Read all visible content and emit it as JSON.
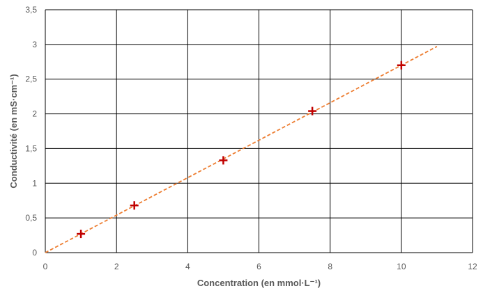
{
  "chart_data": {
    "type": "scatter",
    "xlabel": "Concentration (en mmol·L⁻¹)",
    "ylabel": "Conductivité (en mS·cm⁻¹)",
    "xlim": [
      0,
      12
    ],
    "ylim": [
      0,
      3.5
    ],
    "x_ticks": [
      0,
      2,
      4,
      6,
      8,
      10,
      12
    ],
    "y_ticks": [
      0,
      0.5,
      1,
      1.5,
      2,
      2.5,
      3,
      3.5
    ],
    "x_tick_labels": [
      "0",
      "2",
      "4",
      "6",
      "8",
      "10",
      "12"
    ],
    "y_tick_labels": [
      "0",
      "0,5",
      "1",
      "1,5",
      "2",
      "2,5",
      "3",
      "3,5"
    ],
    "grid": true,
    "series": [
      {
        "x": [
          1,
          2.5,
          5,
          7.5,
          10
        ],
        "y": [
          0.27,
          0.68,
          1.33,
          2.04,
          2.7
        ],
        "marker": "plus",
        "color": "#c00000"
      }
    ],
    "trendline": {
      "type": "linear",
      "x": [
        0,
        11
      ],
      "y": [
        0,
        2.97
      ],
      "style": "dashed",
      "color": "#ed7d31"
    }
  }
}
